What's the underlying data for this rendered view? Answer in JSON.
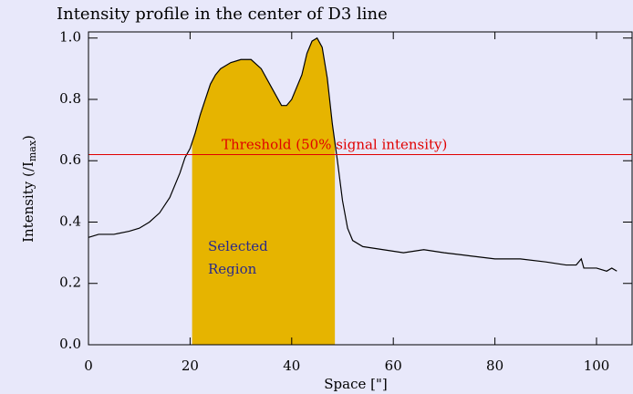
{
  "chart_data": {
    "type": "line",
    "title": "Intensity profile in the center of D3 line",
    "x_label": "Space [\"]",
    "y_label": {
      "text": "Intensity (/I",
      "sub": "max",
      "end": ")"
    },
    "xlim": [
      0,
      107
    ],
    "ylim": [
      0,
      1.02
    ],
    "xticks": [
      0,
      20,
      40,
      60,
      80,
      100
    ],
    "yticks": [
      {
        "value": 0,
        "label": "0.0"
      },
      {
        "value": 0.2,
        "label": "0.2"
      },
      {
        "value": 0.4,
        "label": "0.4"
      },
      {
        "value": 0.6,
        "label": "0.6"
      },
      {
        "value": 0.8,
        "label": "0.8"
      },
      {
        "value": 1,
        "label": "1.0"
      }
    ],
    "series": [
      {
        "color": "#000000",
        "x": [
          0,
          2,
          5,
          8,
          10,
          12,
          14,
          16,
          18,
          19,
          20,
          21,
          22,
          23,
          24,
          25,
          26,
          28,
          30,
          32,
          34,
          36,
          38,
          39,
          40,
          42,
          43,
          44,
          45,
          46,
          47,
          48,
          49,
          50,
          51,
          52,
          54,
          58,
          62,
          66,
          70,
          75,
          80,
          85,
          90,
          94,
          96,
          97,
          97.5,
          100,
          102,
          103,
          104
        ],
        "values": [
          0.35,
          0.36,
          0.36,
          0.37,
          0.38,
          0.4,
          0.43,
          0.48,
          0.56,
          0.61,
          0.64,
          0.69,
          0.75,
          0.8,
          0.85,
          0.88,
          0.9,
          0.92,
          0.93,
          0.93,
          0.9,
          0.84,
          0.78,
          0.78,
          0.8,
          0.88,
          0.95,
          0.99,
          1.0,
          0.97,
          0.87,
          0.72,
          0.6,
          0.47,
          0.38,
          0.34,
          0.32,
          0.31,
          0.3,
          0.31,
          0.3,
          0.29,
          0.28,
          0.28,
          0.27,
          0.26,
          0.26,
          0.28,
          0.25,
          0.25,
          0.24,
          0.25,
          0.24
        ]
      }
    ],
    "threshold": {
      "value": 0.62,
      "color": "#e00000",
      "label": "Threshold (50% signal intensity)"
    },
    "region": {
      "x": [
        20.4,
        48.5
      ],
      "color": "#e6b400",
      "label": [
        "Selected",
        "Region"
      ]
    }
  }
}
